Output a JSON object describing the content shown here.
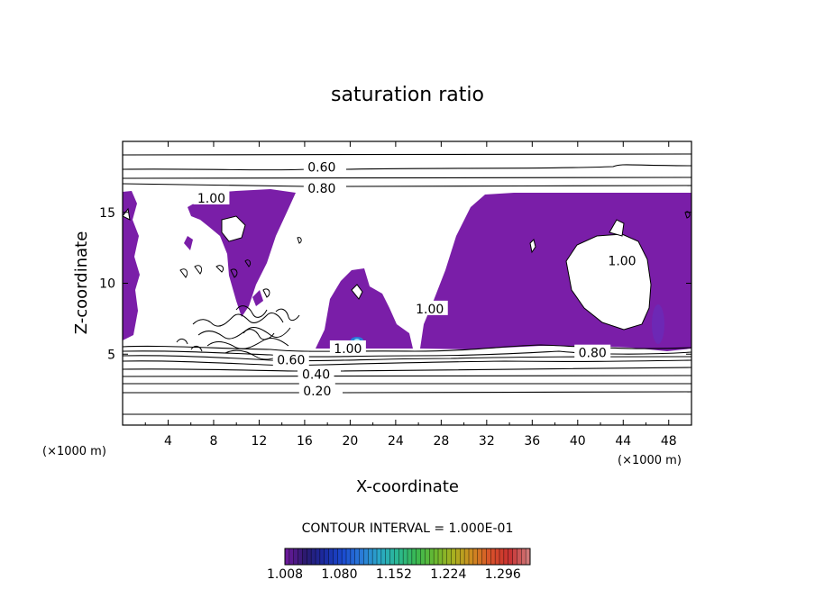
{
  "chart_data": {
    "type": "contour",
    "title": "saturation ratio",
    "xlabel": "X-coordinate",
    "ylabel": "Z-coordinate",
    "x_unit_label": "(×1000 m)",
    "y_unit_label": "(×1000 m)",
    "xlim": [
      0,
      50
    ],
    "ylim": [
      0,
      20
    ],
    "x_ticks": [
      4,
      8,
      12,
      16,
      20,
      24,
      28,
      32,
      36,
      40,
      44,
      48
    ],
    "y_ticks": [
      5,
      10,
      15
    ],
    "contour_interval_text": "CONTOUR INTERVAL = 1.000E-01",
    "contour_labels": [
      {
        "text": "0.60",
        "x": 17.5,
        "z": 18.2
      },
      {
        "text": "0.80",
        "x": 17.5,
        "z": 16.7
      },
      {
        "text": "1.00",
        "x": 7.8,
        "z": 16.0
      },
      {
        "text": "1.00",
        "x": 43.9,
        "z": 11.6
      },
      {
        "text": "1.00",
        "x": 27.0,
        "z": 8.2
      },
      {
        "text": "1.00",
        "x": 19.8,
        "z": 5.4
      },
      {
        "text": "0.60",
        "x": 14.8,
        "z": 4.6
      },
      {
        "text": "0.40",
        "x": 17.0,
        "z": 3.6
      },
      {
        "text": "0.20",
        "x": 17.1,
        "z": 2.4
      },
      {
        "text": "0.80",
        "x": 41.3,
        "z": 5.1
      }
    ],
    "contour_levels": [
      0.1,
      0.2,
      0.3,
      0.4,
      0.5,
      0.6,
      0.7,
      0.8,
      0.9,
      1.0
    ],
    "supersaturated_fill_color": "#7a1ea8",
    "colorbar": {
      "tick_labels": [
        "1.008",
        "1.080",
        "1.152",
        "1.224",
        "1.296"
      ],
      "min": 1.008,
      "max": 1.332,
      "colors": [
        "#6a1a9a",
        "#2a1a6e",
        "#1a2aa0",
        "#1a4ad0",
        "#2a7ad8",
        "#2aa8c8",
        "#2ab890",
        "#3ab850",
        "#6ab830",
        "#a8b020",
        "#d08a20",
        "#d8502a",
        "#c83030",
        "#d07878"
      ]
    }
  }
}
